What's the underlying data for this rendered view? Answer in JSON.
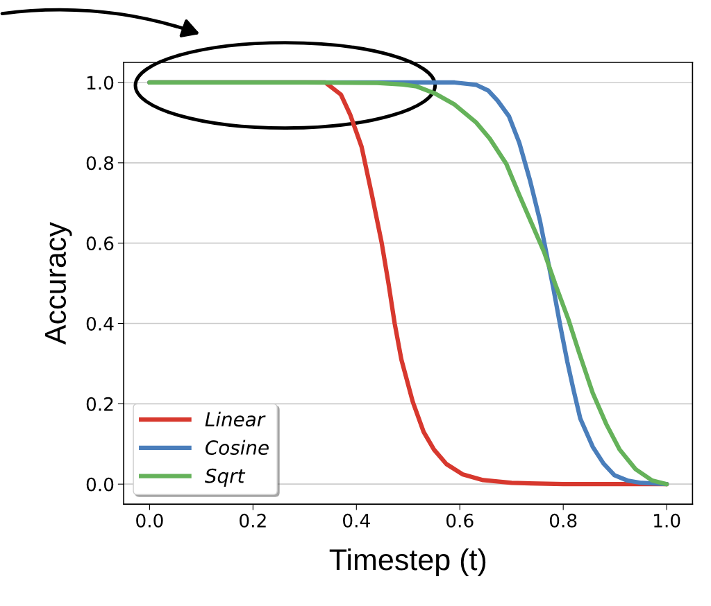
{
  "chart_data": {
    "type": "line",
    "xlabel": "Timestep (t)",
    "ylabel": "Accuracy",
    "xlim": [
      -0.05,
      1.05
    ],
    "ylim": [
      -0.05,
      1.05
    ],
    "xticks": [
      {
        "value": 0,
        "label": "0.0"
      },
      0.2,
      0.4,
      0.6,
      0.8,
      {
        "value": 1,
        "label": "1.0"
      }
    ],
    "yticks": [
      {
        "value": 0,
        "label": "0.0"
      },
      0.2,
      0.4,
      0.6,
      0.8,
      {
        "value": 1,
        "label": "1.0"
      }
    ],
    "grid": "y",
    "legend": "bottom left",
    "marker": "none",
    "line_style": "solid",
    "series": [
      {
        "name": "Linear",
        "color": "#d7382e",
        "x": [
          0,
          0.34,
          0.37,
          0.388,
          0.41,
          0.43,
          0.449,
          0.462,
          0.474,
          0.487,
          0.509,
          0.53,
          0.55,
          0.574,
          0.606,
          0.645,
          0.7,
          0.8,
          1.0
        ],
        "values": [
          1.0,
          1.0,
          0.97,
          0.92,
          0.84,
          0.72,
          0.6,
          0.5,
          0.4,
          0.31,
          0.205,
          0.13,
          0.086,
          0.05,
          0.024,
          0.01,
          0.003,
          0.0,
          0.0
        ]
      },
      {
        "name": "Cosine",
        "color": "#4a7ebb",
        "x": [
          0,
          0.55,
          0.59,
          0.632,
          0.655,
          0.673,
          0.695,
          0.715,
          0.736,
          0.755,
          0.768,
          0.781,
          0.794,
          0.808,
          0.82,
          0.833,
          0.857,
          0.878,
          0.899,
          0.924,
          0.951,
          1.0
        ],
        "values": [
          1.0,
          1.0,
          1.0,
          0.994,
          0.98,
          0.955,
          0.916,
          0.85,
          0.755,
          0.656,
          0.571,
          0.487,
          0.396,
          0.304,
          0.234,
          0.163,
          0.093,
          0.051,
          0.022,
          0.009,
          0.003,
          0.0
        ]
      },
      {
        "name": "Sqrt",
        "color": "#65b25a",
        "x": [
          0,
          0.3,
          0.44,
          0.49,
          0.517,
          0.553,
          0.59,
          0.632,
          0.658,
          0.69,
          0.715,
          0.742,
          0.763,
          0.784,
          0.81,
          0.831,
          0.857,
          0.883,
          0.909,
          0.94,
          0.972,
          1.0
        ],
        "values": [
          1.0,
          1.0,
          0.999,
          0.995,
          0.99,
          0.972,
          0.945,
          0.9,
          0.86,
          0.797,
          0.72,
          0.64,
          0.578,
          0.5,
          0.41,
          0.326,
          0.227,
          0.15,
          0.086,
          0.037,
          0.009,
          0.0
        ]
      }
    ]
  }
}
